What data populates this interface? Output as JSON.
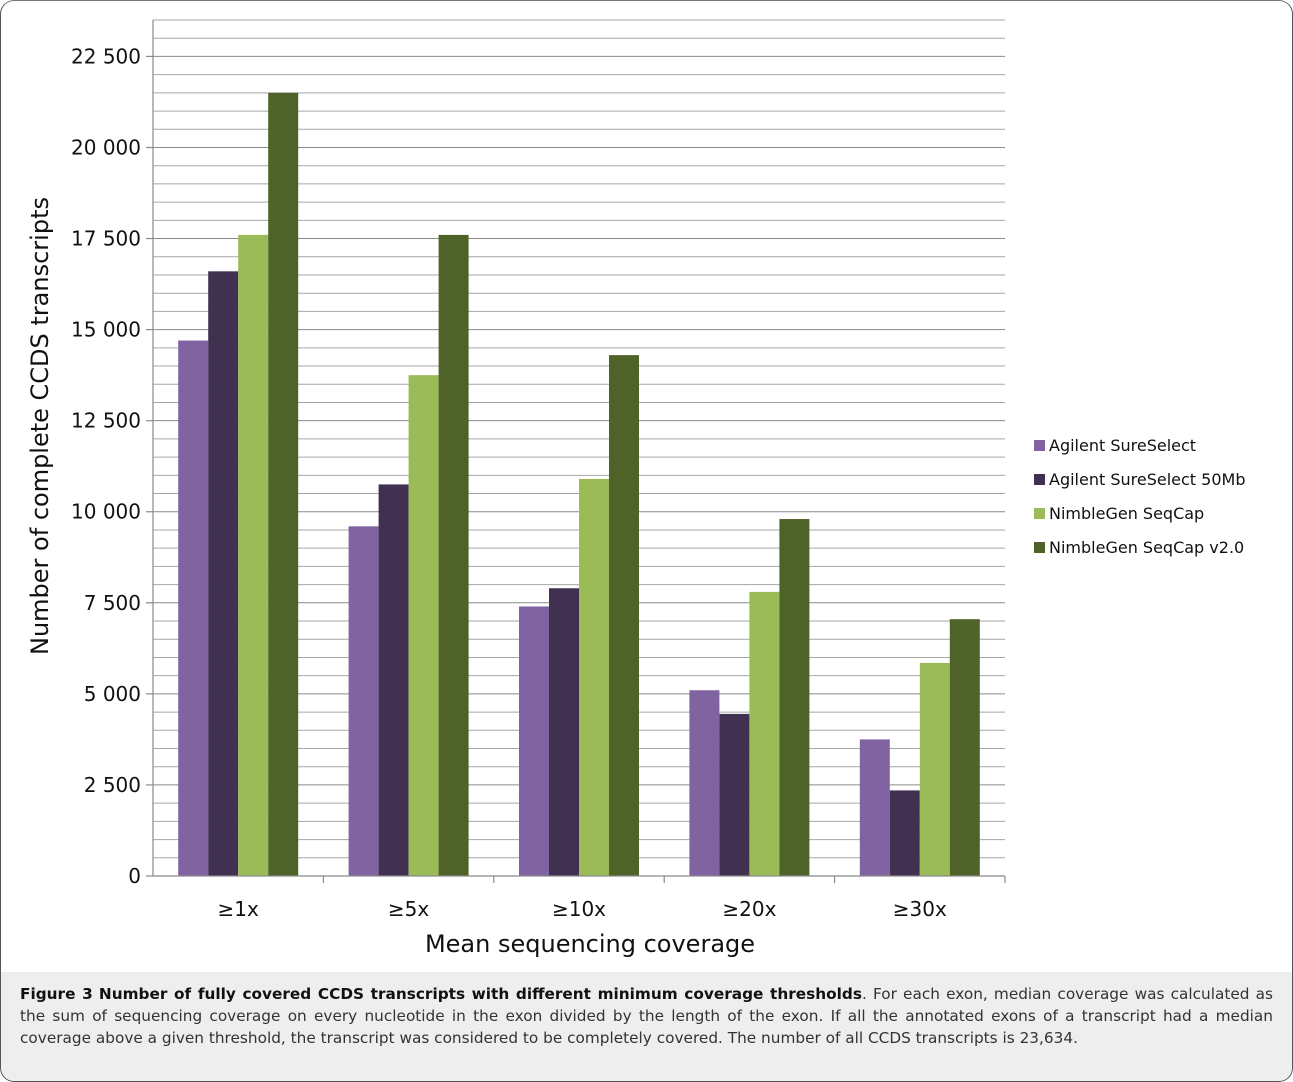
{
  "chart_data": {
    "type": "bar",
    "xlabel": "Mean sequencing coverage",
    "ylabel": "Number of complete CCDS transcripts",
    "ylim": [
      0,
      23500
    ],
    "yticks": [
      0,
      2500,
      5000,
      7500,
      10000,
      12500,
      15000,
      17500,
      20000,
      22500
    ],
    "ytick_labels": [
      "0",
      "2 500",
      "5 000",
      "7 500",
      "10 000",
      "12 500",
      "15 000",
      "17 500",
      "20 000",
      "22 500"
    ],
    "minor_grid_step": 500,
    "grid": true,
    "legend_position": "right",
    "categories": [
      "≥1x",
      "≥5x",
      "≥10x",
      "≥20x",
      "≥30x"
    ],
    "series": [
      {
        "name": "Agilent SureSelect",
        "color": "#8064a2",
        "values": [
          14700,
          9600,
          7400,
          5100,
          3750
        ]
      },
      {
        "name": "Agilent SureSelect 50Mb",
        "color": "#403151",
        "values": [
          16600,
          10750,
          7900,
          4450,
          2350
        ]
      },
      {
        "name": "NimbleGen SeqCap",
        "color": "#9bbb59",
        "values": [
          17600,
          13750,
          10900,
          7800,
          5850
        ]
      },
      {
        "name": "NimbleGen SeqCap v2.0",
        "color": "#4f6228",
        "values": [
          21500,
          17600,
          14300,
          9800,
          7050
        ]
      }
    ]
  },
  "caption": {
    "label": "Figure 3",
    "title": "Number of fully covered CCDS transcripts with different minimum coverage thresholds",
    "text": ". For each exon, median coverage was calculated as the sum of sequencing coverage on every nucleotide in the exon divided by the length of the exon. If all the annotated exons of a transcript had a median coverage above a given threshold, the transcript was considered to be completely covered. The number of all CCDS transcripts is 23,634."
  }
}
